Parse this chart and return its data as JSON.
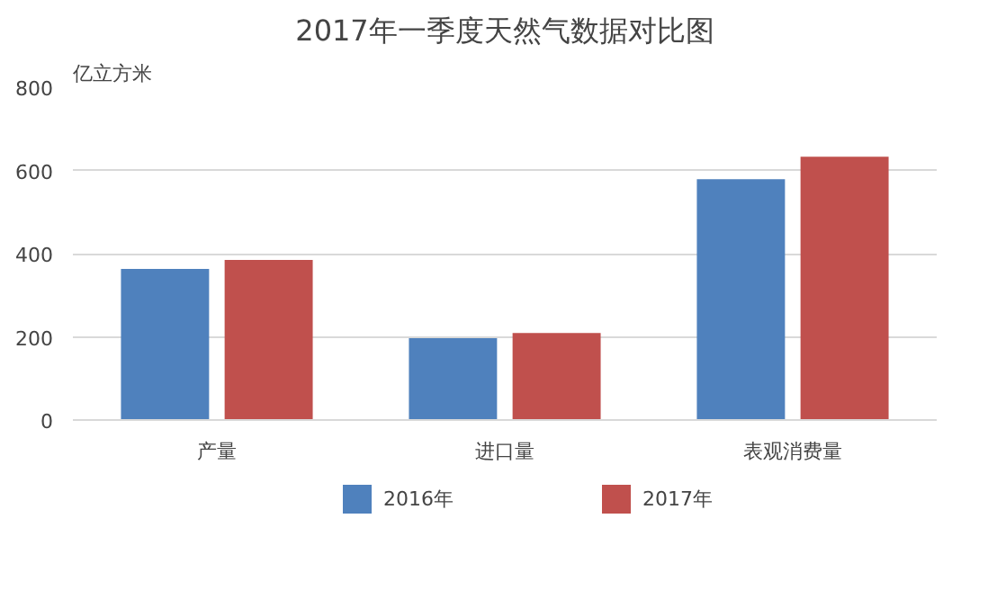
{
  "chart_data": {
    "type": "bar",
    "title": "2017年一季度天然气数据对比图",
    "ylabel": "亿立方米",
    "categories": [
      "产量",
      "进口量",
      "表观消费量"
    ],
    "series": [
      {
        "name": "2016年",
        "color": "#4f81bd",
        "values": [
          363,
          197,
          579
        ]
      },
      {
        "name": "2017年",
        "color": "#c0504d",
        "values": [
          385,
          209,
          633
        ]
      }
    ],
    "ylim": [
      0,
      800
    ],
    "yticks": [
      0,
      200,
      400,
      600,
      800
    ],
    "grid": "y",
    "legend": "bottom"
  }
}
